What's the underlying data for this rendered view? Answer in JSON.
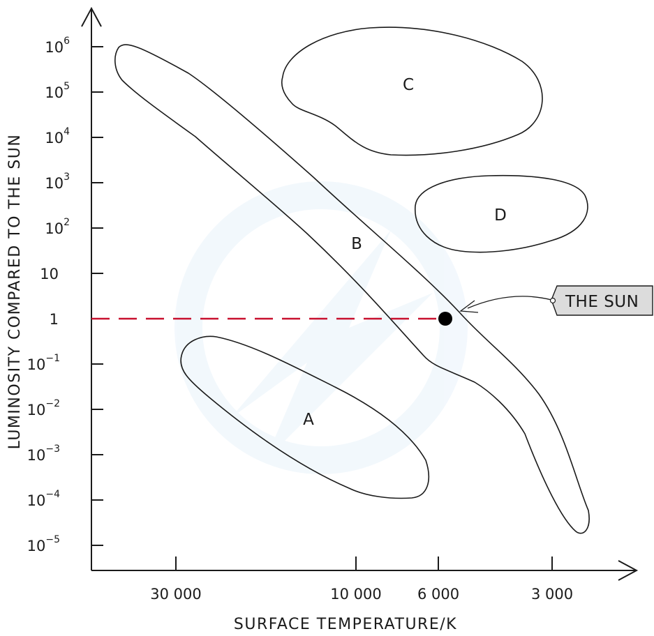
{
  "axes": {
    "x_title": "SURFACE TEMPERATURE/K",
    "y_title": "LUMINOSITY COMPARED TO THE SUN",
    "x_ticks": [
      "30 000",
      "10 000",
      "6 000",
      "3 000"
    ],
    "y_ticks": [
      {
        "base": "10",
        "exp": "6"
      },
      {
        "base": "10",
        "exp": "5"
      },
      {
        "base": "10",
        "exp": "4"
      },
      {
        "base": "10",
        "exp": "3"
      },
      {
        "base": "10",
        "exp": "2"
      },
      {
        "base": "10",
        "exp": ""
      },
      {
        "base": "1",
        "exp": ""
      },
      {
        "base": "10",
        "exp": "−1"
      },
      {
        "base": "10",
        "exp": "−2"
      },
      {
        "base": "10",
        "exp": "−3"
      },
      {
        "base": "10",
        "exp": "−4"
      },
      {
        "base": "10",
        "exp": "−5"
      }
    ]
  },
  "regions": {
    "a": "A",
    "b": "B",
    "c": "C",
    "d": "D"
  },
  "sun": {
    "label": "THE SUN",
    "luminosity": 1,
    "temperature_K": 5800
  },
  "colors": {
    "line": "#1a1a1a",
    "dashed_reference": "#c8102e",
    "callout_fill": "#dcdcdc"
  }
}
